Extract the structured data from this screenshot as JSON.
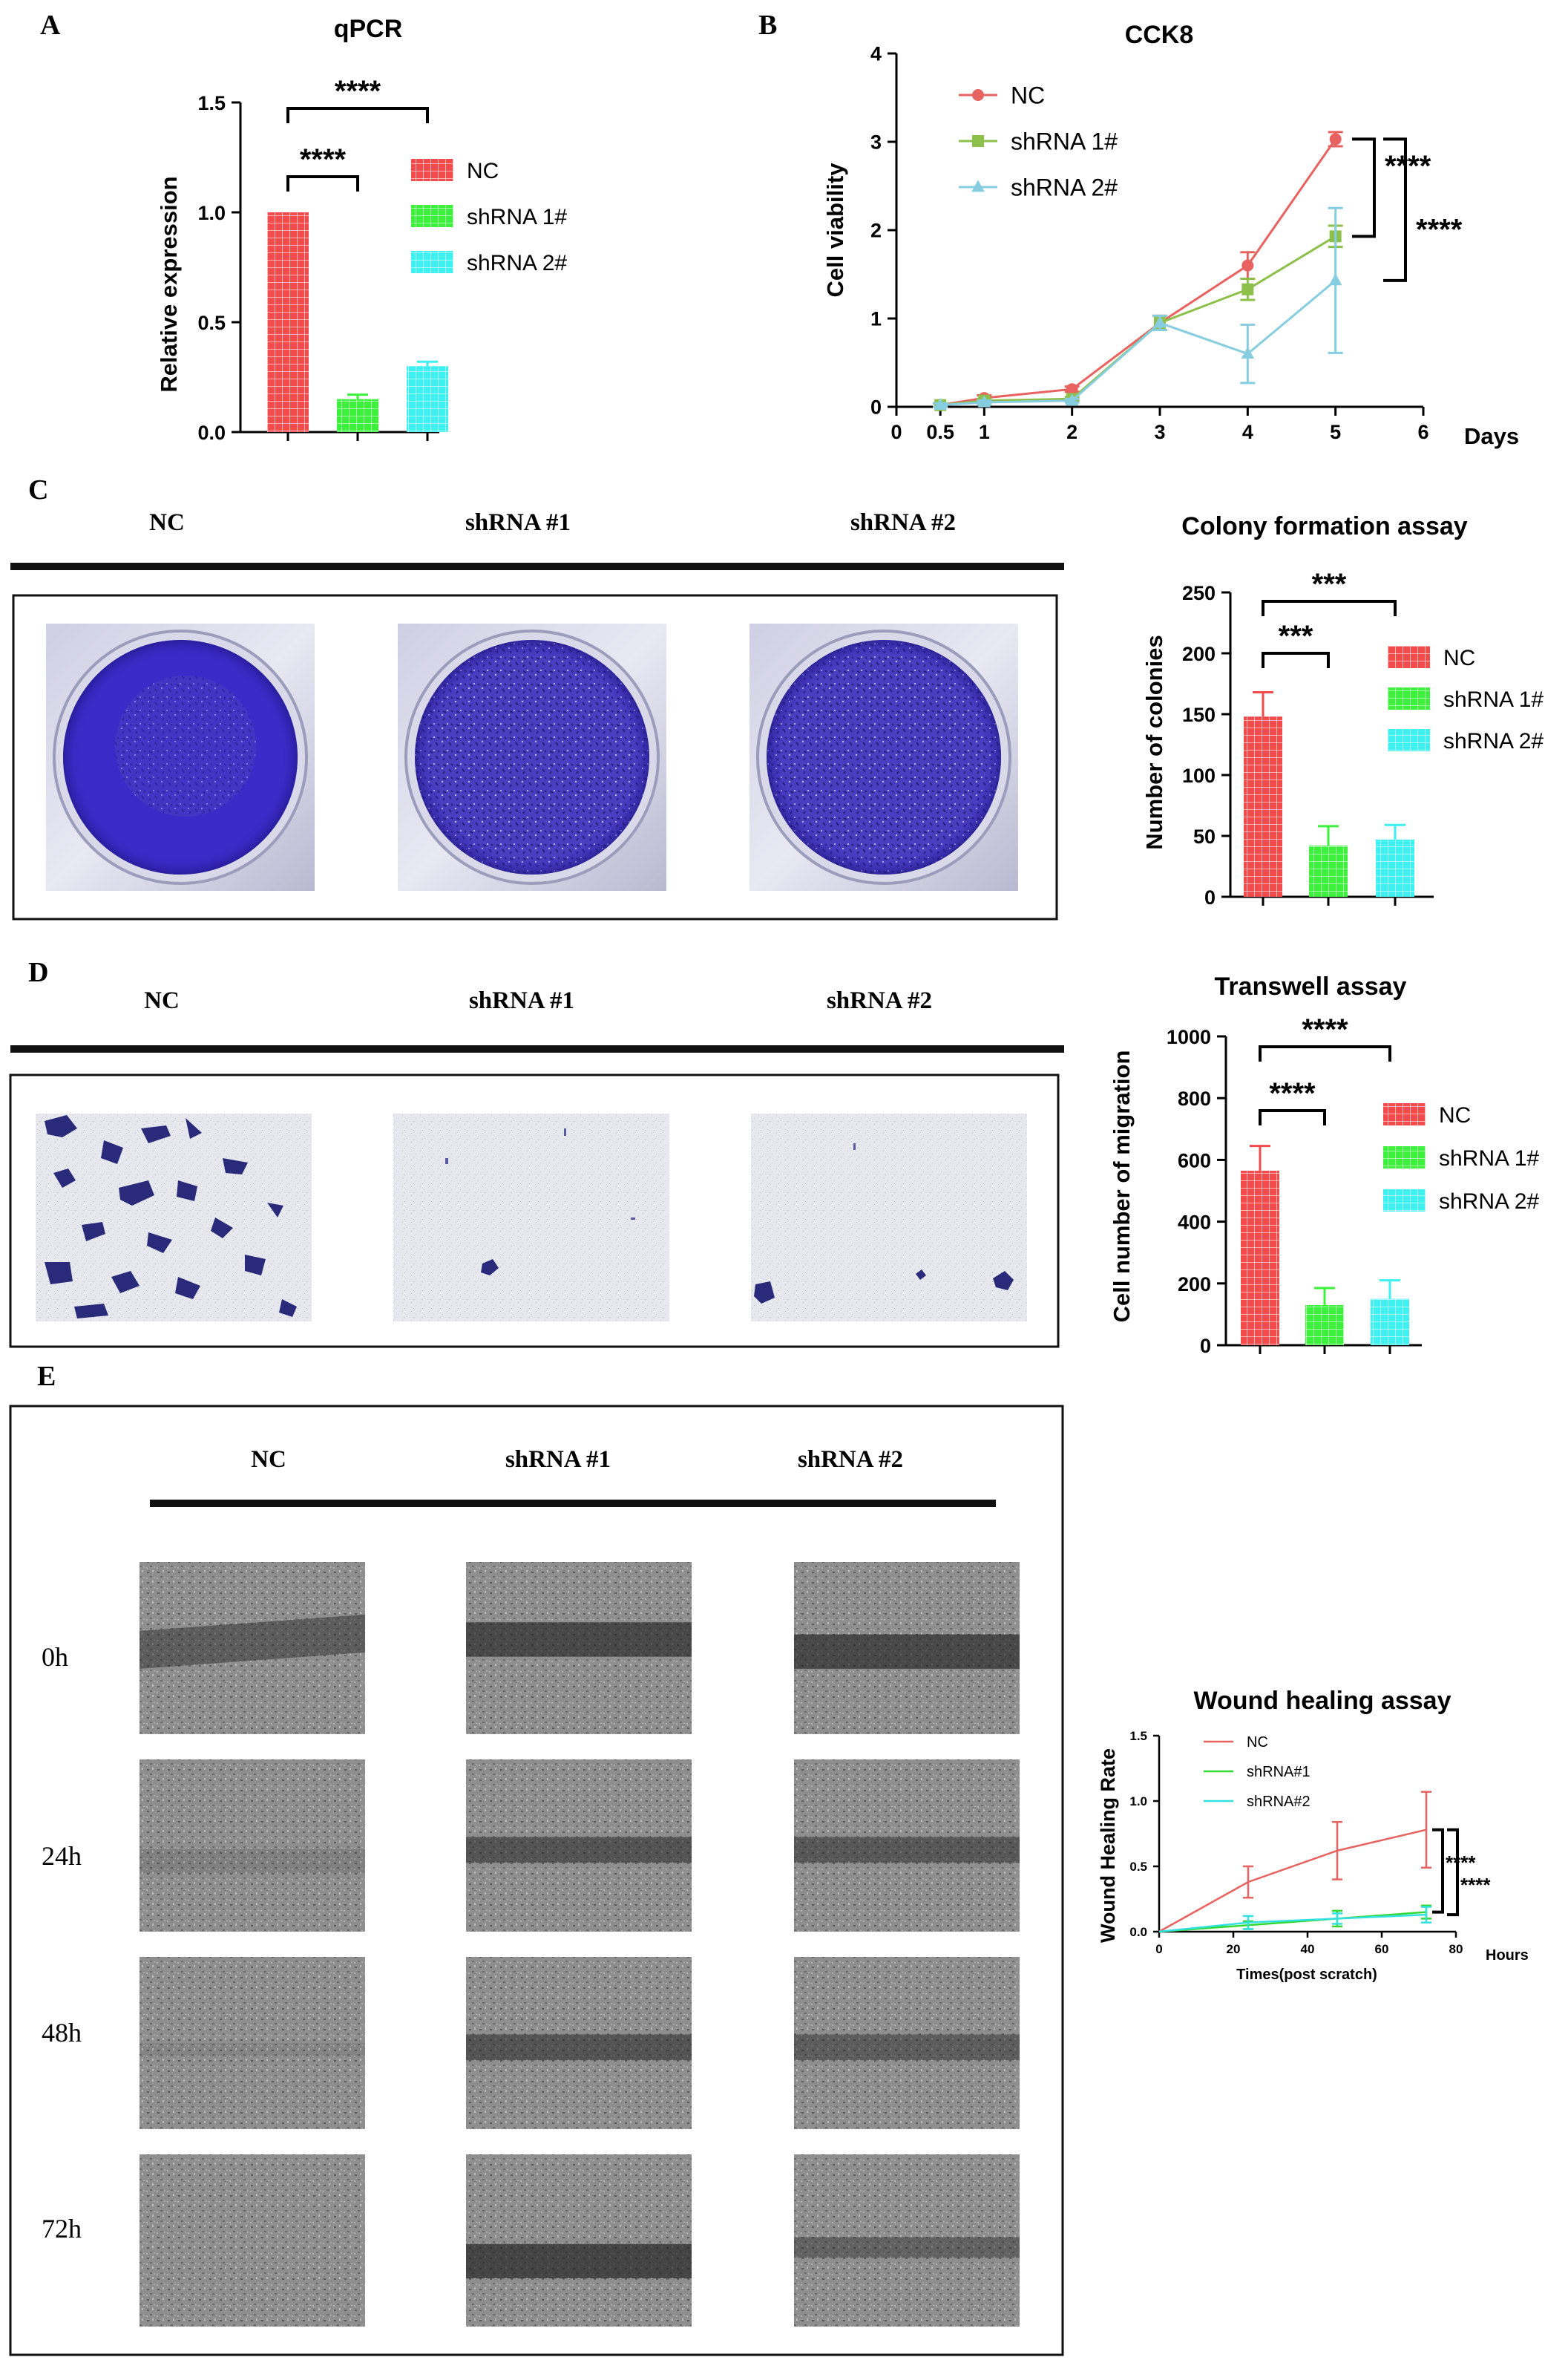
{
  "panels": {
    "A": {
      "letter": "A"
    },
    "B": {
      "letter": "B"
    },
    "C": {
      "letter": "C",
      "groups": [
        "NC",
        "shRNA #1",
        "shRNA #2"
      ]
    },
    "D": {
      "letter": "D",
      "groups": [
        "NC",
        "shRNA #1",
        "shRNA #2"
      ]
    },
    "E": {
      "letter": "E",
      "groups": [
        "NC",
        "shRNA #1",
        "shRNA #2"
      ],
      "timepoints": [
        "0h",
        "24h",
        "48h",
        "72h"
      ]
    }
  },
  "colors": {
    "nc": "#f24b4b",
    "sh1": "#3cf03c",
    "sh2": "#3ff0f0",
    "nc_line": "#e8625f",
    "sh1_line": "#8cc04a",
    "sh2_line": "#86cde0",
    "stain": "#3a2bc8"
  },
  "chart_data": [
    {
      "id": "qpcr",
      "type": "bar",
      "title": "qPCR",
      "ylabel": "Relative expression",
      "xlabel": "",
      "categories": [
        "NC",
        "shRNA 1#",
        "shRNA 2#"
      ],
      "values": [
        1.0,
        0.15,
        0.3
      ],
      "errors": [
        0.0,
        0.02,
        0.02
      ],
      "ylim": [
        0,
        1.5
      ],
      "yticks": [
        "0.0",
        "0.5",
        "1.0",
        "1.5"
      ],
      "legend": [
        "NC",
        "shRNA 1#",
        "shRNA 2#"
      ],
      "legend_position": "right",
      "significance": [
        "****",
        "****"
      ]
    },
    {
      "id": "cck8",
      "type": "line",
      "title": "CCK8",
      "ylabel": "Cell viability",
      "xlabel": "Days",
      "x": [
        0.5,
        1,
        2,
        3,
        4,
        5
      ],
      "xticks": [
        "0",
        "0.5",
        "1",
        "2",
        "3",
        "4",
        "5",
        "6"
      ],
      "yticks": [
        "0",
        "1",
        "2",
        "3",
        "4"
      ],
      "xlim": [
        0,
        6
      ],
      "ylim": [
        0,
        4
      ],
      "series": [
        {
          "name": "NC",
          "values": [
            0.02,
            0.1,
            0.2,
            0.95,
            1.6,
            3.03
          ],
          "errors": [
            0.02,
            0.03,
            0.03,
            0.08,
            0.15,
            0.08
          ]
        },
        {
          "name": "shRNA 1#",
          "values": [
            0.02,
            0.07,
            0.09,
            0.95,
            1.33,
            1.93
          ],
          "errors": [
            0.02,
            0.02,
            0.02,
            0.08,
            0.12,
            0.12
          ]
        },
        {
          "name": "shRNA 2#",
          "values": [
            0.02,
            0.05,
            0.07,
            0.95,
            0.6,
            1.43
          ],
          "errors": [
            0.02,
            0.02,
            0.02,
            0.08,
            0.33,
            0.82
          ]
        }
      ],
      "legend_position": "top-left",
      "significance": [
        "****",
        "****"
      ]
    },
    {
      "id": "colony",
      "type": "bar",
      "title": "Colony formation assay",
      "ylabel": "Number of colonies",
      "xlabel": "",
      "categories": [
        "NC",
        "shRNA 1#",
        "shRNA 2#"
      ],
      "values": [
        148,
        42,
        47
      ],
      "errors": [
        20,
        16,
        12
      ],
      "ylim": [
        0,
        250
      ],
      "yticks": [
        "0",
        "50",
        "100",
        "150",
        "200",
        "250"
      ],
      "legend": [
        "NC",
        "shRNA 1#",
        "shRNA 2#"
      ],
      "legend_position": "right",
      "significance": [
        "***",
        "***"
      ]
    },
    {
      "id": "transwell",
      "type": "bar",
      "title": "Transwell assay",
      "ylabel": "Cell number of migration",
      "xlabel": "",
      "categories": [
        "NC",
        "shRNA 1#",
        "shRNA 2#"
      ],
      "values": [
        565,
        130,
        150
      ],
      "errors": [
        80,
        55,
        60
      ],
      "ylim": [
        0,
        1000
      ],
      "yticks": [
        "0",
        "200",
        "400",
        "600",
        "800",
        "1000"
      ],
      "legend": [
        "NC",
        "shRNA 1#",
        "shRNA 2#"
      ],
      "legend_position": "right",
      "significance": [
        "****",
        "****"
      ]
    },
    {
      "id": "wound",
      "type": "line",
      "title": "Wound healing assay",
      "ylabel": "Wound Healing Rate",
      "xlabel": "Times(post scratch)",
      "xunit": "Hours",
      "x": [
        0,
        24,
        48,
        72
      ],
      "xticks": [
        "0",
        "20",
        "40",
        "60",
        "80"
      ],
      "yticks": [
        "0.0",
        "0.5",
        "1.0",
        "1.5"
      ],
      "xlim": [
        0,
        80
      ],
      "ylim": [
        0,
        1.5
      ],
      "series": [
        {
          "name": "NC",
          "values": [
            0.0,
            0.38,
            0.62,
            0.78
          ],
          "errors": [
            0,
            0.12,
            0.22,
            0.29
          ]
        },
        {
          "name": "shRNA#1",
          "values": [
            0.0,
            0.05,
            0.1,
            0.15
          ],
          "errors": [
            0,
            0.03,
            0.06,
            0.05
          ]
        },
        {
          "name": "shRNA#2",
          "values": [
            0.0,
            0.07,
            0.1,
            0.13
          ],
          "errors": [
            0,
            0.05,
            0.04,
            0.06
          ]
        }
      ],
      "legend_position": "top-left",
      "significance": [
        "****",
        "****"
      ]
    }
  ]
}
